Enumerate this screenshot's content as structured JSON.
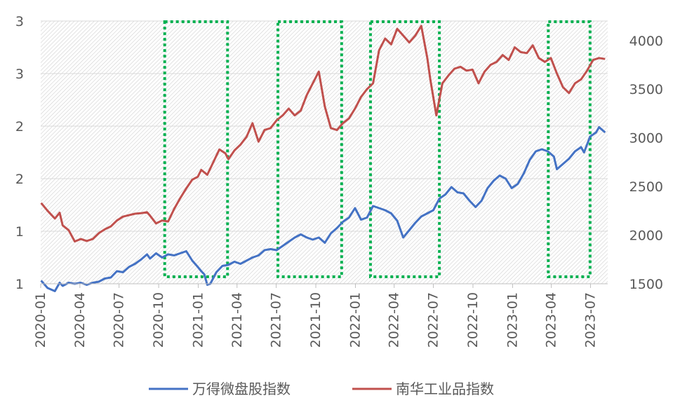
{
  "chart_data": {
    "type": "line",
    "title": "",
    "grid": true,
    "legend_position": "bottom",
    "x_ticks": [
      "2020-01",
      "2020-04",
      "2020-07",
      "2020-10",
      "2021-01",
      "2021-04",
      "2021-07",
      "2021-10",
      "2022-01",
      "2022-04",
      "2022-07",
      "2022-10",
      "2023-01",
      "2023-04",
      "2023-07"
    ],
    "y_left": {
      "ylim": [
        1,
        3.5
      ],
      "tick_labels": [
        "1",
        "1",
        "2",
        "2",
        "3",
        "3"
      ]
    },
    "y_right": {
      "ylim": [
        1500,
        4200
      ],
      "tick_labels": [
        "1500",
        "2000",
        "2500",
        "3000",
        "3500",
        "4000"
      ]
    },
    "shaded_periods": [
      {
        "start": "2020-10-15",
        "end": "2021-03-10"
      },
      {
        "start": "2021-07-05",
        "end": "2021-11-30"
      },
      {
        "start": "2022-02-05",
        "end": "2022-07-15"
      },
      {
        "start": "2023-03-25",
        "end": "2023-06-30"
      }
    ],
    "series": [
      {
        "name": "万得微盘股指数",
        "axis": "left",
        "color": "#4472C4",
        "points": [
          [
            "2020-01-02",
            1.03
          ],
          [
            "2020-01-17",
            0.96
          ],
          [
            "2020-02-03",
            0.93
          ],
          [
            "2020-02-14",
            1.01
          ],
          [
            "2020-02-21",
            0.98
          ],
          [
            "2020-03-06",
            1.01
          ],
          [
            "2020-03-20",
            1.0
          ],
          [
            "2020-04-03",
            1.01
          ],
          [
            "2020-04-17",
            0.99
          ],
          [
            "2020-05-01",
            1.01
          ],
          [
            "2020-05-15",
            1.02
          ],
          [
            "2020-05-29",
            1.05
          ],
          [
            "2020-06-12",
            1.06
          ],
          [
            "2020-06-26",
            1.12
          ],
          [
            "2020-07-10",
            1.11
          ],
          [
            "2020-07-24",
            1.16
          ],
          [
            "2020-08-07",
            1.19
          ],
          [
            "2020-08-21",
            1.23
          ],
          [
            "2020-09-04",
            1.28
          ],
          [
            "2020-09-11",
            1.24
          ],
          [
            "2020-09-25",
            1.29
          ],
          [
            "2020-10-09",
            1.25
          ],
          [
            "2020-10-23",
            1.28
          ],
          [
            "2020-11-06",
            1.27
          ],
          [
            "2020-11-20",
            1.29
          ],
          [
            "2020-12-04",
            1.31
          ],
          [
            "2020-12-18",
            1.22
          ],
          [
            "2020-12-31",
            1.16
          ],
          [
            "2021-01-08",
            1.12
          ],
          [
            "2021-01-15",
            1.09
          ],
          [
            "2021-01-22",
            0.99
          ],
          [
            "2021-01-29",
            1.0
          ],
          [
            "2021-02-12",
            1.11
          ],
          [
            "2021-02-26",
            1.17
          ],
          [
            "2021-03-12",
            1.18
          ],
          [
            "2021-03-26",
            1.21
          ],
          [
            "2021-04-09",
            1.19
          ],
          [
            "2021-04-23",
            1.22
          ],
          [
            "2021-05-07",
            1.25
          ],
          [
            "2021-05-21",
            1.27
          ],
          [
            "2021-06-04",
            1.32
          ],
          [
            "2021-06-18",
            1.33
          ],
          [
            "2021-07-02",
            1.32
          ],
          [
            "2021-07-16",
            1.36
          ],
          [
            "2021-07-30",
            1.4
          ],
          [
            "2021-08-13",
            1.44
          ],
          [
            "2021-08-27",
            1.47
          ],
          [
            "2021-09-10",
            1.44
          ],
          [
            "2021-09-24",
            1.42
          ],
          [
            "2021-10-08",
            1.44
          ],
          [
            "2021-10-22",
            1.39
          ],
          [
            "2021-11-05",
            1.48
          ],
          [
            "2021-11-19",
            1.53
          ],
          [
            "2021-12-03",
            1.59
          ],
          [
            "2021-12-17",
            1.63
          ],
          [
            "2021-12-31",
            1.72
          ],
          [
            "2022-01-14",
            1.61
          ],
          [
            "2022-01-28",
            1.63
          ],
          [
            "2022-02-11",
            1.74
          ],
          [
            "2022-02-25",
            1.72
          ],
          [
            "2022-03-11",
            1.7
          ],
          [
            "2022-03-25",
            1.67
          ],
          [
            "2022-04-08",
            1.6
          ],
          [
            "2022-04-22",
            1.44
          ],
          [
            "2022-05-06",
            1.51
          ],
          [
            "2022-05-20",
            1.58
          ],
          [
            "2022-06-03",
            1.64
          ],
          [
            "2022-06-17",
            1.67
          ],
          [
            "2022-07-01",
            1.7
          ],
          [
            "2022-07-15",
            1.81
          ],
          [
            "2022-07-29",
            1.85
          ],
          [
            "2022-08-12",
            1.92
          ],
          [
            "2022-08-26",
            1.87
          ],
          [
            "2022-09-09",
            1.86
          ],
          [
            "2022-09-23",
            1.79
          ],
          [
            "2022-10-07",
            1.73
          ],
          [
            "2022-10-21",
            1.79
          ],
          [
            "2022-11-04",
            1.91
          ],
          [
            "2022-11-18",
            1.98
          ],
          [
            "2022-12-02",
            2.03
          ],
          [
            "2022-12-16",
            2.0
          ],
          [
            "2022-12-30",
            1.91
          ],
          [
            "2023-01-13",
            1.95
          ],
          [
            "2023-01-27",
            2.05
          ],
          [
            "2023-02-10",
            2.18
          ],
          [
            "2023-02-24",
            2.26
          ],
          [
            "2023-03-10",
            2.28
          ],
          [
            "2023-03-24",
            2.26
          ],
          [
            "2023-04-07",
            2.21
          ],
          [
            "2023-04-14",
            2.09
          ],
          [
            "2023-04-28",
            2.14
          ],
          [
            "2023-05-12",
            2.19
          ],
          [
            "2023-05-26",
            2.26
          ],
          [
            "2023-06-09",
            2.3
          ],
          [
            "2023-06-16",
            2.25
          ],
          [
            "2023-06-30",
            2.4
          ],
          [
            "2023-07-14",
            2.44
          ],
          [
            "2023-07-21",
            2.49
          ],
          [
            "2023-08-04",
            2.44
          ]
        ]
      },
      {
        "name": "南华工业品指数",
        "axis": "right",
        "color": "#C0504D",
        "points": [
          [
            "2020-01-02",
            2330
          ],
          [
            "2020-01-17",
            2250
          ],
          [
            "2020-02-03",
            2170
          ],
          [
            "2020-02-14",
            2230
          ],
          [
            "2020-02-21",
            2100
          ],
          [
            "2020-03-06",
            2050
          ],
          [
            "2020-03-20",
            1935
          ],
          [
            "2020-04-03",
            1960
          ],
          [
            "2020-04-17",
            1940
          ],
          [
            "2020-05-01",
            1960
          ],
          [
            "2020-05-15",
            2020
          ],
          [
            "2020-05-29",
            2060
          ],
          [
            "2020-06-12",
            2090
          ],
          [
            "2020-06-26",
            2150
          ],
          [
            "2020-07-10",
            2190
          ],
          [
            "2020-07-24",
            2205
          ],
          [
            "2020-08-07",
            2220
          ],
          [
            "2020-08-21",
            2225
          ],
          [
            "2020-09-04",
            2235
          ],
          [
            "2020-09-11",
            2200
          ],
          [
            "2020-09-25",
            2120
          ],
          [
            "2020-10-09",
            2150
          ],
          [
            "2020-10-23",
            2140
          ],
          [
            "2020-11-06",
            2270
          ],
          [
            "2020-11-20",
            2380
          ],
          [
            "2020-12-04",
            2480
          ],
          [
            "2020-12-18",
            2570
          ],
          [
            "2020-12-31",
            2600
          ],
          [
            "2021-01-08",
            2670
          ],
          [
            "2021-01-22",
            2620
          ],
          [
            "2021-02-05",
            2750
          ],
          [
            "2021-02-19",
            2880
          ],
          [
            "2021-03-05",
            2840
          ],
          [
            "2021-03-12",
            2780
          ],
          [
            "2021-03-26",
            2870
          ],
          [
            "2021-04-09",
            2930
          ],
          [
            "2021-04-23",
            3010
          ],
          [
            "2021-05-07",
            3150
          ],
          [
            "2021-05-21",
            2960
          ],
          [
            "2021-06-04",
            3080
          ],
          [
            "2021-06-18",
            3100
          ],
          [
            "2021-07-02",
            3180
          ],
          [
            "2021-07-16",
            3230
          ],
          [
            "2021-07-30",
            3300
          ],
          [
            "2021-08-13",
            3230
          ],
          [
            "2021-08-27",
            3280
          ],
          [
            "2021-09-10",
            3440
          ],
          [
            "2021-09-24",
            3560
          ],
          [
            "2021-10-08",
            3680
          ],
          [
            "2021-10-22",
            3320
          ],
          [
            "2021-11-05",
            3100
          ],
          [
            "2021-11-19",
            3080
          ],
          [
            "2021-12-03",
            3150
          ],
          [
            "2021-12-17",
            3200
          ],
          [
            "2021-12-31",
            3300
          ],
          [
            "2022-01-14",
            3420
          ],
          [
            "2022-01-28",
            3500
          ],
          [
            "2022-02-11",
            3560
          ],
          [
            "2022-02-25",
            3900
          ],
          [
            "2022-03-11",
            4020
          ],
          [
            "2022-03-25",
            3960
          ],
          [
            "2022-04-08",
            4120
          ],
          [
            "2022-04-22",
            4050
          ],
          [
            "2022-05-06",
            3980
          ],
          [
            "2022-05-20",
            4050
          ],
          [
            "2022-06-03",
            4150
          ],
          [
            "2022-06-17",
            3820
          ],
          [
            "2022-06-24",
            3600
          ],
          [
            "2022-07-08",
            3230
          ],
          [
            "2022-07-22",
            3560
          ],
          [
            "2022-08-05",
            3640
          ],
          [
            "2022-08-19",
            3710
          ],
          [
            "2022-09-02",
            3730
          ],
          [
            "2022-09-16",
            3690
          ],
          [
            "2022-09-30",
            3700
          ],
          [
            "2022-10-14",
            3560
          ],
          [
            "2022-10-28",
            3680
          ],
          [
            "2022-11-11",
            3750
          ],
          [
            "2022-11-25",
            3780
          ],
          [
            "2022-12-09",
            3850
          ],
          [
            "2022-12-23",
            3800
          ],
          [
            "2023-01-06",
            3930
          ],
          [
            "2023-01-20",
            3880
          ],
          [
            "2023-02-03",
            3870
          ],
          [
            "2023-02-17",
            3950
          ],
          [
            "2023-03-03",
            3820
          ],
          [
            "2023-03-17",
            3780
          ],
          [
            "2023-03-31",
            3820
          ],
          [
            "2023-04-14",
            3660
          ],
          [
            "2023-04-28",
            3520
          ],
          [
            "2023-05-12",
            3460
          ],
          [
            "2023-05-26",
            3560
          ],
          [
            "2023-06-09",
            3600
          ],
          [
            "2023-06-23",
            3690
          ],
          [
            "2023-07-07",
            3800
          ],
          [
            "2023-07-21",
            3820
          ],
          [
            "2023-08-04",
            3810
          ]
        ]
      }
    ]
  }
}
